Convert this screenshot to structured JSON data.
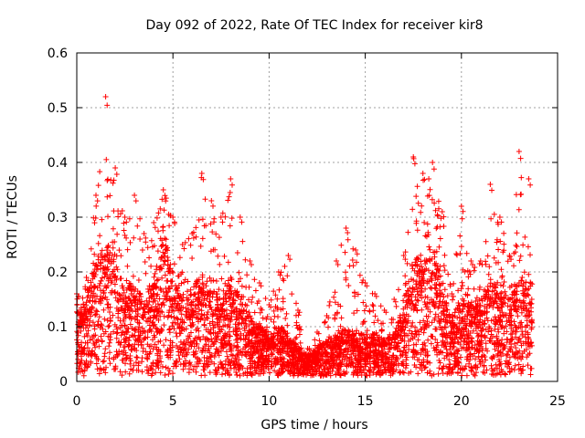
{
  "chart_data": {
    "type": "scatter",
    "title": "Day 092 of 2022, Rate Of TEC Index for receiver kir8",
    "xlabel": "GPS time / hours",
    "ylabel": "ROTI / TECUs",
    "xlim": [
      0,
      25
    ],
    "ylim": [
      0,
      0.6
    ],
    "x_ticks": [
      "0",
      "5",
      "10",
      "15",
      "20",
      "25"
    ],
    "y_ticks": [
      "0",
      "0.1",
      "0.2",
      "0.3",
      "0.4",
      "0.5",
      "0.6"
    ],
    "grid": true,
    "marker": "+",
    "series": [
      {
        "name": "ROTI",
        "color": "#ff0000",
        "envelope_hours": [
          0,
          0.5,
          1.0,
          1.5,
          2.0,
          2.5,
          3.0,
          3.5,
          4.0,
          4.5,
          5.0,
          5.5,
          6.0,
          6.5,
          7.0,
          7.5,
          8.0,
          8.5,
          9.0,
          9.5,
          10.0,
          10.5,
          11.0,
          11.5,
          12.0,
          12.5,
          13.0,
          13.5,
          14.0,
          14.5,
          15.0,
          15.5,
          16.0,
          16.5,
          17.0,
          17.5,
          18.0,
          18.5,
          19.0,
          19.5,
          20.0,
          20.5,
          21.0,
          21.5,
          22.0,
          22.5,
          23.0,
          23.5,
          24.0
        ],
        "envelope_max": [
          0.16,
          0.19,
          0.34,
          0.52,
          0.39,
          0.3,
          0.34,
          0.27,
          0.29,
          0.35,
          0.3,
          0.25,
          0.27,
          0.38,
          0.33,
          0.3,
          0.37,
          0.3,
          0.22,
          0.18,
          0.14,
          0.2,
          0.23,
          0.13,
          0.06,
          0.09,
          0.12,
          0.22,
          0.28,
          0.24,
          0.18,
          0.16,
          0.13,
          0.15,
          0.23,
          0.41,
          0.38,
          0.4,
          0.31,
          0.16,
          0.32,
          0.22,
          0.22,
          0.36,
          0.3,
          0.23,
          0.42,
          0.37,
          0.0
        ],
        "envelope_typical": [
          0.09,
          0.11,
          0.16,
          0.2,
          0.16,
          0.12,
          0.13,
          0.11,
          0.14,
          0.22,
          0.14,
          0.11,
          0.12,
          0.15,
          0.13,
          0.11,
          0.14,
          0.11,
          0.08,
          0.07,
          0.06,
          0.07,
          0.06,
          0.04,
          0.03,
          0.04,
          0.05,
          0.06,
          0.07,
          0.06,
          0.06,
          0.06,
          0.05,
          0.06,
          0.1,
          0.17,
          0.17,
          0.19,
          0.13,
          0.08,
          0.11,
          0.1,
          0.1,
          0.14,
          0.12,
          0.11,
          0.14,
          0.13,
          0.0
        ],
        "data_range_hours": [
          0,
          23.7
        ],
        "min_value": 0.01
      }
    ]
  }
}
